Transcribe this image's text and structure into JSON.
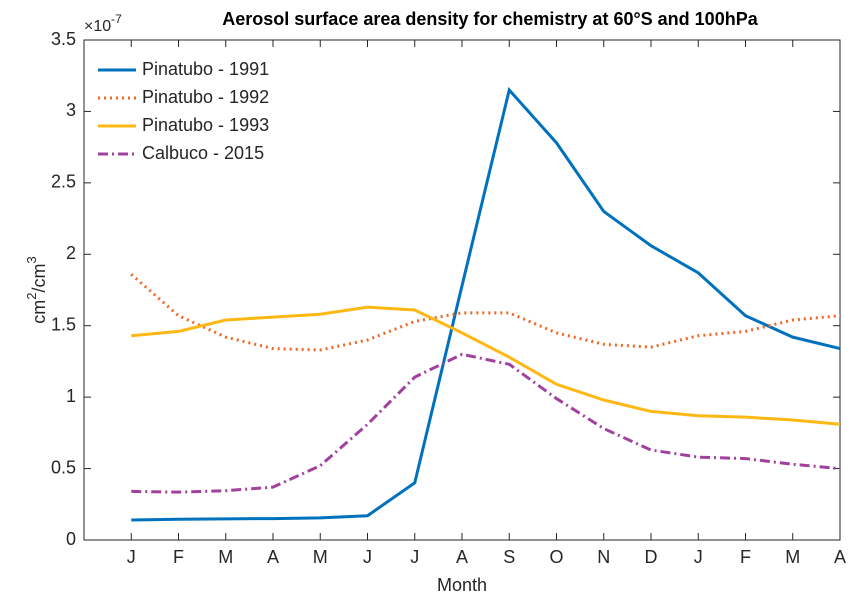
{
  "chart_data": {
    "type": "line",
    "title": "Aerosol surface area density for chemistry at 60°S and 100hPa",
    "xlabel": "Month",
    "ylabel_parts": [
      "cm",
      "2",
      "/cm",
      "3"
    ],
    "y_exponent_base": "×10",
    "y_exponent": "-7",
    "categories": [
      "J",
      "F",
      "M",
      "A",
      "M",
      "J",
      "J",
      "A",
      "S",
      "O",
      "N",
      "D",
      "J",
      "F",
      "M",
      "A"
    ],
    "ylim": [
      0,
      3.5
    ],
    "yticks": [
      0,
      0.5,
      1,
      1.5,
      2,
      2.5,
      3,
      3.5
    ],
    "grid": false,
    "legend": "upper-left",
    "series": [
      {
        "name": "Pinatubo - 1991",
        "color": "#0072bd",
        "dash": "solid",
        "values": [
          0.14,
          0.145,
          0.148,
          0.15,
          0.155,
          0.17,
          0.4,
          1.78,
          3.15,
          2.78,
          2.3,
          2.06,
          1.87,
          1.57,
          1.42,
          1.34
        ]
      },
      {
        "name": "Pinatubo - 1992",
        "color": "#f26522",
        "dash": "dotted",
        "values": [
          1.86,
          1.57,
          1.42,
          1.34,
          1.33,
          1.4,
          1.53,
          1.59,
          1.59,
          1.45,
          1.37,
          1.35,
          1.43,
          1.46,
          1.54,
          1.57
        ]
      },
      {
        "name": "Pinatubo - 1993",
        "color": "#fdb813",
        "dash": "solid",
        "values": [
          1.43,
          1.46,
          1.54,
          1.56,
          1.58,
          1.63,
          1.61,
          1.45,
          1.28,
          1.09,
          0.98,
          0.9,
          0.87,
          0.86,
          0.84,
          0.81
        ]
      },
      {
        "name": "Calbuco - 2015",
        "color": "#a2409e",
        "dash": "dashdot",
        "values": [
          0.34,
          0.335,
          0.345,
          0.37,
          0.52,
          0.81,
          1.14,
          1.3,
          1.23,
          0.99,
          0.78,
          0.63,
          0.58,
          0.57,
          0.53,
          0.5
        ]
      }
    ]
  }
}
